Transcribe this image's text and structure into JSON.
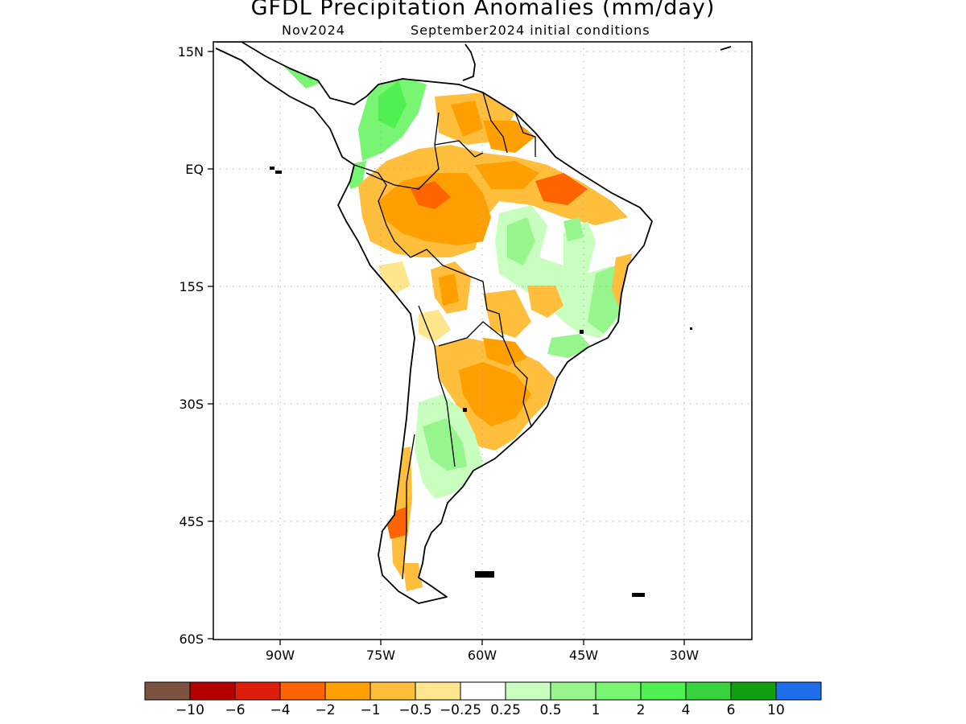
{
  "map": {
    "title": "GFDL Precipitation Anomalies (mm/day)",
    "valid_month": "Nov2024",
    "init_label": "September2024 initial conditions",
    "region": "South America",
    "lat_ticks": [
      "15N",
      "EQ",
      "15S",
      "30S",
      "45S",
      "60S"
    ],
    "lon_ticks": [
      "90W",
      "75W",
      "60W",
      "45W",
      "30W"
    ],
    "gridlines": "dotted",
    "ocean_color": "#ffffff",
    "coastline_color": "#000000"
  },
  "colorbar": {
    "colors": [
      "#7b5140",
      "#b40000",
      "#dc1e0a",
      "#ff6400",
      "#ffa000",
      "#ffbe3c",
      "#ffe68c",
      "#ffffff",
      "#c8ffbe",
      "#96f58c",
      "#78f573",
      "#50f050",
      "#37d23c",
      "#0fa00f",
      "#1e6eeb"
    ],
    "labels": [
      "−10",
      "−6",
      "−4",
      "−2",
      "−1",
      "−0.5",
      "−0.25",
      "0.25",
      "0.5",
      "1",
      "2",
      "4",
      "6",
      "10"
    ]
  }
}
